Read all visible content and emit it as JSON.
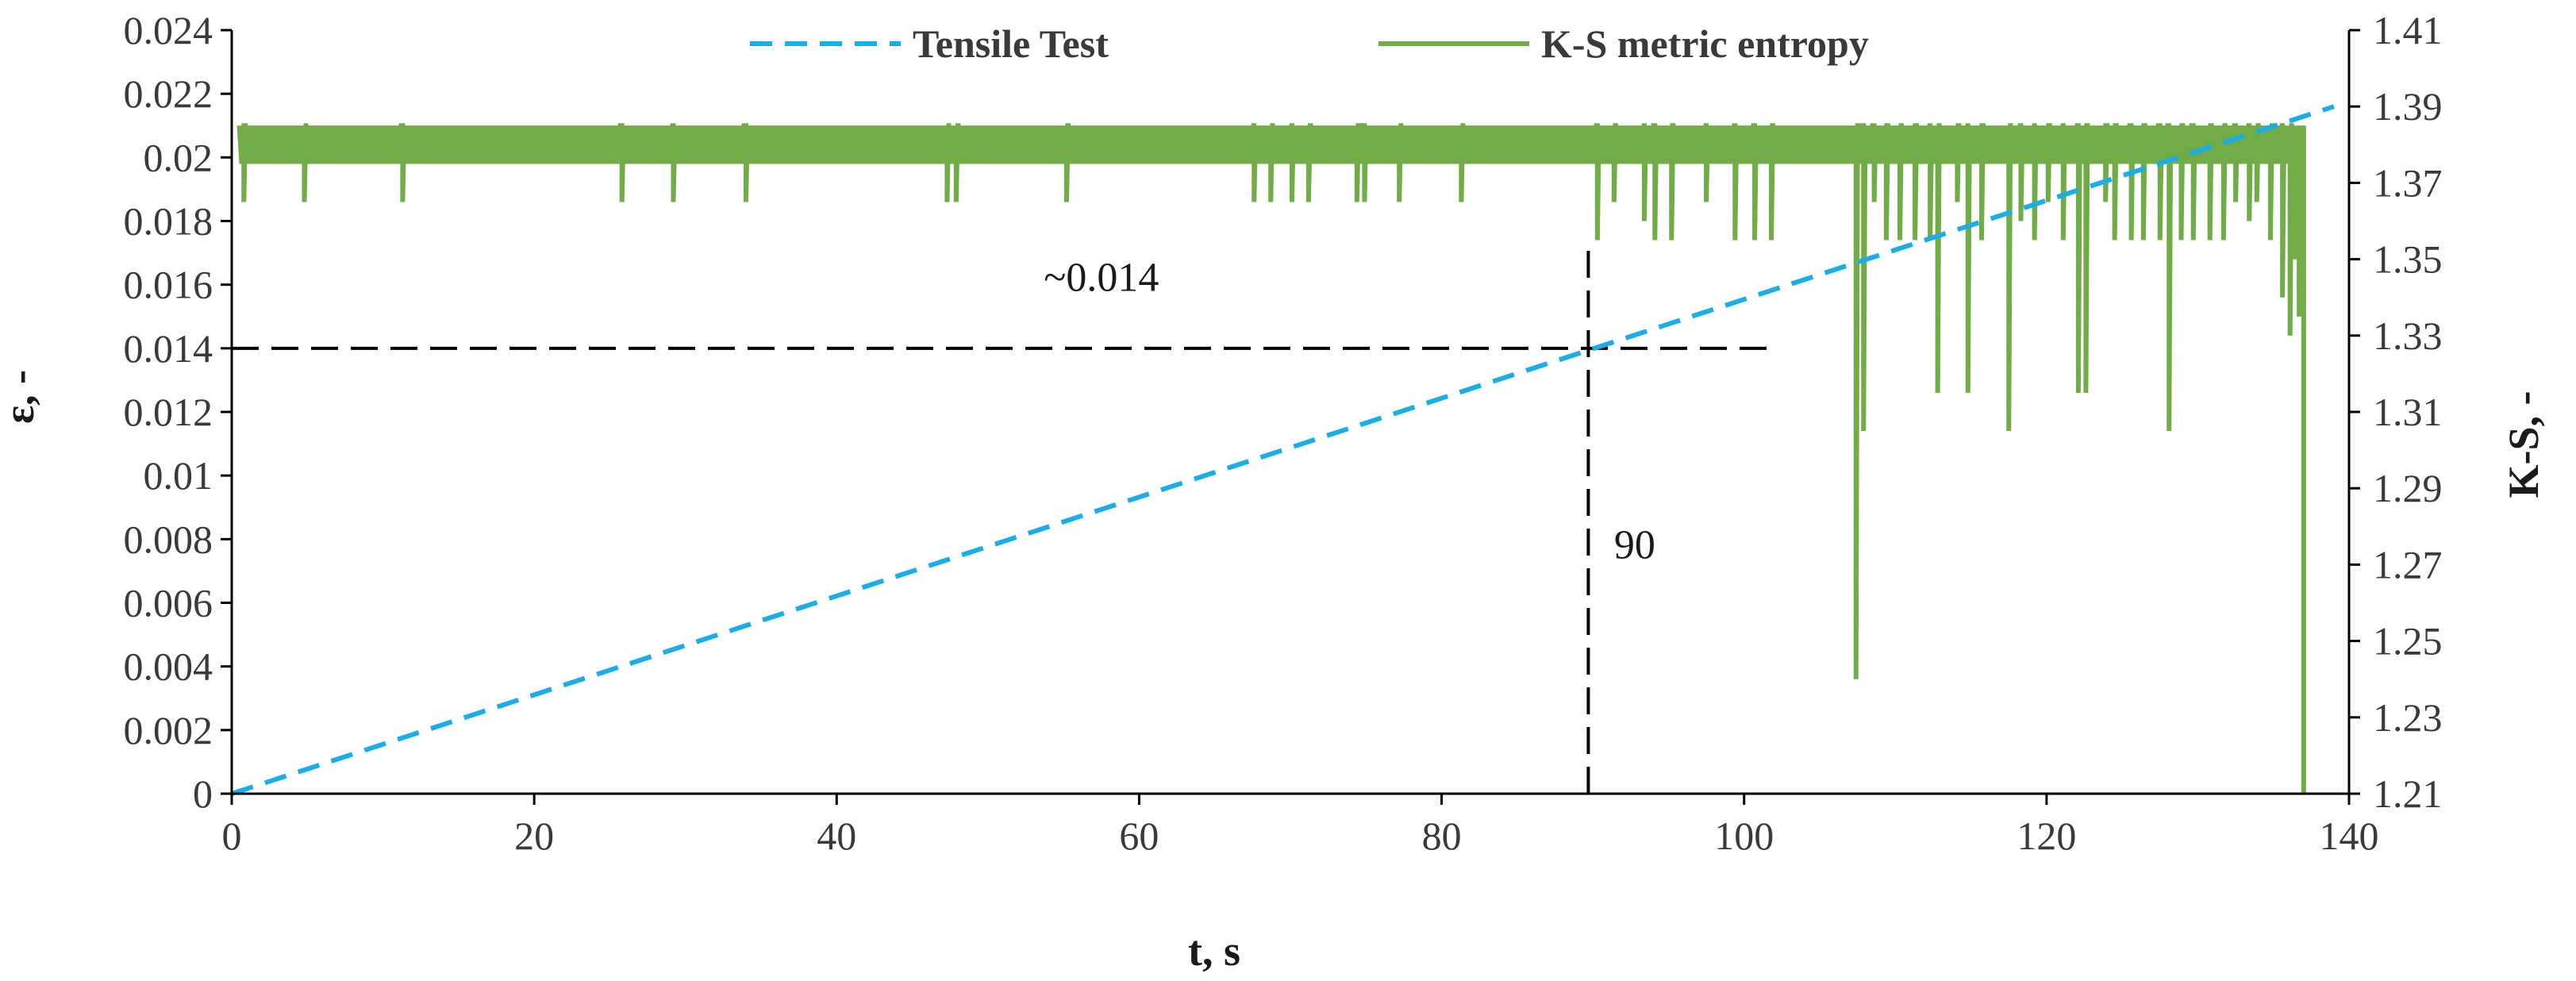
{
  "chart_data": {
    "type": "line",
    "title": "",
    "xlabel": "t, s",
    "ylabel": "ε, -",
    "y2label": "K-S, -",
    "xlim": [
      0,
      140
    ],
    "ylim": [
      0,
      0.024
    ],
    "y2lim": [
      1.21,
      1.41
    ],
    "x_ticks": [
      "0",
      "20",
      "40",
      "60",
      "80",
      "100",
      "120",
      "140"
    ],
    "y_ticks": [
      "0",
      "0.002",
      "0.004",
      "0.006",
      "0.008",
      "0.01",
      "0.012",
      "0.014",
      "0.016",
      "0.018",
      "0.02",
      "0.022",
      "0.024"
    ],
    "y2_ticks": [
      "1.21",
      "1.23",
      "1.25",
      "1.27",
      "1.29",
      "1.31",
      "1.33",
      "1.35",
      "1.37",
      "1.39",
      "1.41"
    ],
    "legend_position": "top",
    "colors": {
      "tensile": "#1aaee8",
      "ks": "#70ad47",
      "ref": "#000000"
    },
    "series": [
      {
        "name": "Tensile Test",
        "axis": "left",
        "style": "dashed",
        "x": [
          0,
          139
        ],
        "y": [
          0,
          0.0216
        ]
      },
      {
        "name": "K-S metric entropy",
        "axis": "right",
        "style": "solid",
        "level_top": 1.385,
        "level_base": 1.375,
        "level_x": [
          0.5,
          136.3
        ],
        "dips": [
          [
            0.8,
            1.365
          ],
          [
            4.8,
            1.365
          ],
          [
            11.3,
            1.365
          ],
          [
            25.8,
            1.365
          ],
          [
            29.2,
            1.365
          ],
          [
            34,
            1.365
          ],
          [
            47.3,
            1.365
          ],
          [
            47.9,
            1.365
          ],
          [
            55.2,
            1.365
          ],
          [
            67.6,
            1.365
          ],
          [
            68.7,
            1.365
          ],
          [
            70.1,
            1.365
          ],
          [
            71.2,
            1.365
          ],
          [
            74.4,
            1.365
          ],
          [
            74.9,
            1.365
          ],
          [
            77.2,
            1.365
          ],
          [
            81.3,
            1.365
          ],
          [
            90.3,
            1.355
          ],
          [
            91.4,
            1.365
          ],
          [
            93.4,
            1.36
          ],
          [
            94.1,
            1.355
          ],
          [
            95.2,
            1.355
          ],
          [
            97.5,
            1.365
          ],
          [
            99.4,
            1.355
          ],
          [
            100.7,
            1.355
          ],
          [
            101.8,
            1.355
          ],
          [
            107.4,
            1.24
          ],
          [
            107.9,
            1.305
          ],
          [
            108.6,
            1.365
          ],
          [
            109.4,
            1.355
          ],
          [
            110.3,
            1.355
          ],
          [
            111.3,
            1.355
          ],
          [
            112.3,
            1.355
          ],
          [
            112.8,
            1.315
          ],
          [
            114.1,
            1.365
          ],
          [
            114.8,
            1.315
          ],
          [
            115.7,
            1.355
          ],
          [
            117.5,
            1.305
          ],
          [
            118.3,
            1.36
          ],
          [
            119.2,
            1.355
          ],
          [
            120.1,
            1.365
          ],
          [
            121.1,
            1.355
          ],
          [
            122.1,
            1.315
          ],
          [
            122.6,
            1.315
          ],
          [
            123.9,
            1.365
          ],
          [
            124.5,
            1.355
          ],
          [
            125.6,
            1.355
          ],
          [
            126.4,
            1.355
          ],
          [
            127.5,
            1.355
          ],
          [
            128.1,
            1.305
          ],
          [
            128.9,
            1.355
          ],
          [
            129.7,
            1.355
          ],
          [
            130.8,
            1.355
          ],
          [
            131.7,
            1.355
          ],
          [
            132.5,
            1.365
          ],
          [
            133.4,
            1.36
          ],
          [
            133.9,
            1.365
          ],
          [
            134.8,
            1.355
          ],
          [
            135.6,
            1.34
          ],
          [
            136.1,
            1.33
          ],
          [
            136.4,
            1.35
          ],
          [
            136.7,
            1.335
          ],
          [
            137,
            1.21
          ]
        ]
      }
    ],
    "reference_lines": {
      "horizontal": {
        "y": 0.014,
        "x_from": 0,
        "x_to": 102.3
      },
      "vertical": {
        "x": 89.7,
        "y_from": 0,
        "y_to": 0.0171
      }
    },
    "annotations": [
      {
        "text": "~0.014",
        "x": 57.5,
        "y": 0.0158
      },
      {
        "text": "90",
        "x": 91.4,
        "y": 0.0074
      }
    ]
  }
}
